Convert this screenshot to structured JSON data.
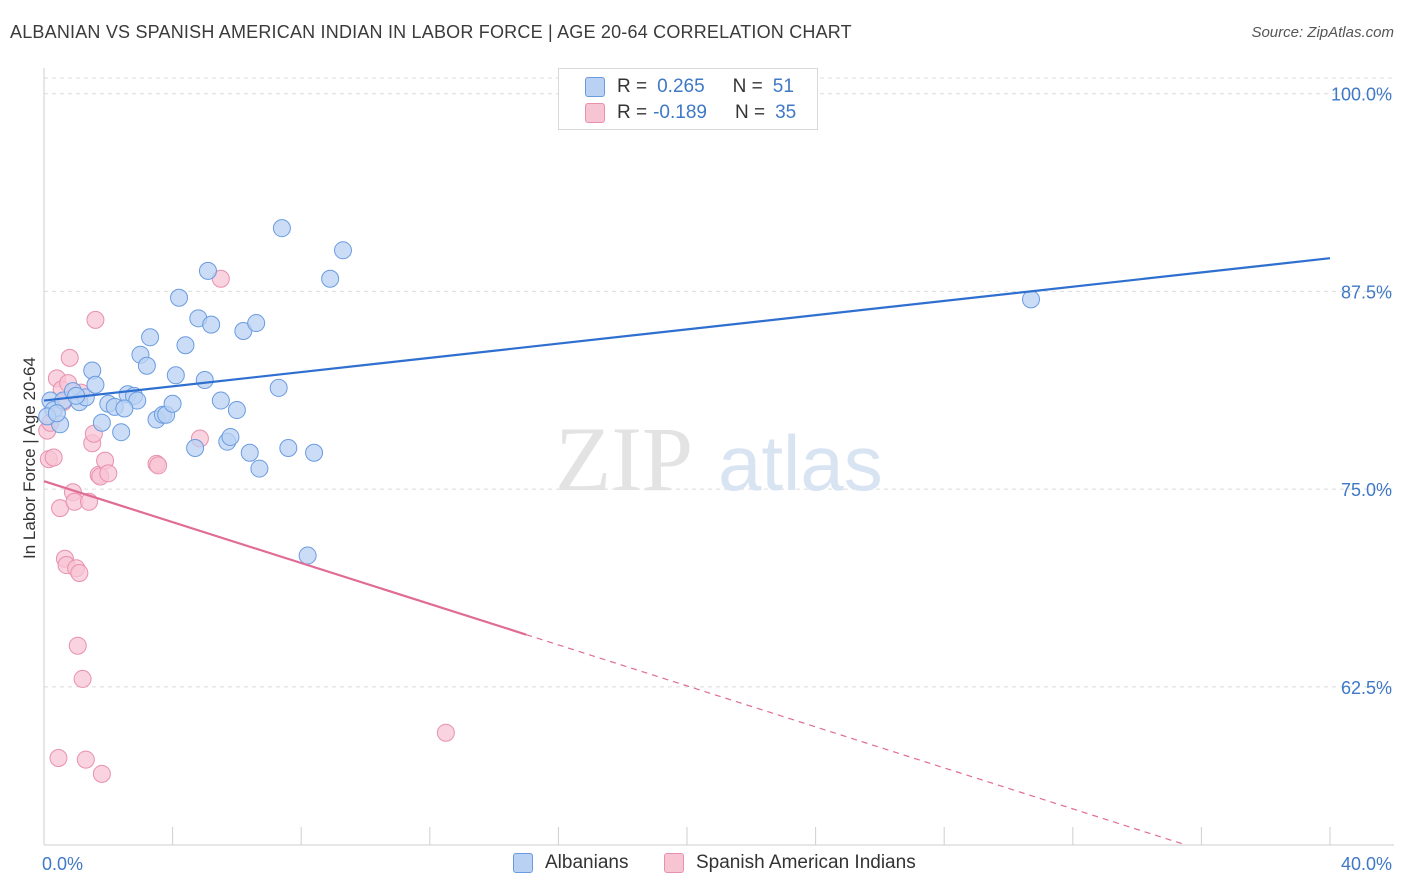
{
  "title": "ALBANIAN VS SPANISH AMERICAN INDIAN IN LABOR FORCE | AGE 20-64 CORRELATION CHART",
  "source": "Source: ZipAtlas.com",
  "watermark": {
    "zip": "ZIP",
    "atlas": "atlas"
  },
  "legend": {
    "rows": [
      {
        "r_label": "R =",
        "r_value": "0.265",
        "n_label": "N =",
        "n_value": "51"
      },
      {
        "r_label": "R =",
        "r_value": "-0.189",
        "n_label": "N =",
        "n_value": "35"
      }
    ]
  },
  "colors": {
    "albanian_fill": "#b9d1f3",
    "albanian_stroke": "#6a9be0",
    "albanian_line": "#2e6fd0",
    "spanish_fill": "#f7c4d4",
    "spanish_stroke": "#e990ae",
    "spanish_line": "#e06c95",
    "tick_text": "#3f78c6",
    "grid": "#dcdcdc"
  },
  "chart_data": {
    "type": "scatter",
    "title": "ALBANIAN VS SPANISH AMERICAN INDIAN IN LABOR FORCE | AGE 20-64 CORRELATION CHART",
    "xlabel": "",
    "ylabel": "In Labor Force | Age 20-64",
    "xlim": [
      0,
      40
    ],
    "ylim": [
      52.5,
      101.5
    ],
    "x_tick_labels": [
      {
        "value": 0,
        "label": "0.0%"
      },
      {
        "value": 40,
        "label": "40.0%"
      }
    ],
    "y_tick_labels": [
      {
        "value": 100,
        "label": "100.0%"
      },
      {
        "value": 87.5,
        "label": "87.5%"
      },
      {
        "value": 75,
        "label": "75.0%"
      },
      {
        "value": 62.5,
        "label": "62.5%"
      }
    ],
    "grid": "horizontal dashed",
    "legend_placement": "bottom",
    "series": [
      {
        "name": "Albanians",
        "points": [
          [
            0.2,
            80.6
          ],
          [
            0.3,
            80.0
          ],
          [
            0.5,
            79.1
          ],
          [
            0.6,
            80.6
          ],
          [
            0.9,
            81.2
          ],
          [
            1.1,
            80.5
          ],
          [
            1.3,
            80.8
          ],
          [
            1.5,
            82.5
          ],
          [
            1.6,
            81.6
          ],
          [
            1.8,
            79.2
          ],
          [
            2.0,
            80.4
          ],
          [
            2.2,
            80.2
          ],
          [
            2.4,
            78.6
          ],
          [
            2.6,
            81.0
          ],
          [
            2.8,
            80.9
          ],
          [
            2.9,
            80.6
          ],
          [
            3.0,
            83.5
          ],
          [
            3.2,
            82.8
          ],
          [
            3.3,
            84.6
          ],
          [
            3.5,
            79.4
          ],
          [
            3.7,
            79.7
          ],
          [
            3.8,
            79.7
          ],
          [
            4.0,
            80.4
          ],
          [
            4.1,
            82.2
          ],
          [
            4.2,
            87.1
          ],
          [
            4.4,
            84.1
          ],
          [
            4.7,
            77.6
          ],
          [
            4.8,
            85.8
          ],
          [
            5.0,
            81.9
          ],
          [
            5.1,
            88.8
          ],
          [
            5.2,
            85.4
          ],
          [
            5.5,
            80.6
          ],
          [
            5.7,
            78.0
          ],
          [
            5.8,
            78.3
          ],
          [
            6.0,
            80.0
          ],
          [
            6.2,
            85.0
          ],
          [
            6.4,
            77.3
          ],
          [
            6.6,
            85.5
          ],
          [
            6.7,
            76.3
          ],
          [
            7.3,
            81.4
          ],
          [
            7.4,
            91.5
          ],
          [
            7.6,
            77.6
          ],
          [
            8.2,
            70.8
          ],
          [
            8.4,
            77.3
          ],
          [
            8.9,
            88.3
          ],
          [
            9.3,
            90.1
          ],
          [
            30.7,
            87.0
          ],
          [
            0.1,
            79.6
          ],
          [
            0.4,
            79.8
          ],
          [
            1.0,
            80.9
          ],
          [
            2.5,
            80.1
          ]
        ]
      },
      {
        "name": "Spanish American Indians",
        "points": [
          [
            0.1,
            78.7
          ],
          [
            0.15,
            76.9
          ],
          [
            0.2,
            79.2
          ],
          [
            0.3,
            77.0
          ],
          [
            0.4,
            82.0
          ],
          [
            0.5,
            73.8
          ],
          [
            0.55,
            81.3
          ],
          [
            0.6,
            80.5
          ],
          [
            0.65,
            70.6
          ],
          [
            0.7,
            70.2
          ],
          [
            0.75,
            81.7
          ],
          [
            0.8,
            83.3
          ],
          [
            0.9,
            74.8
          ],
          [
            0.95,
            74.2
          ],
          [
            1.0,
            70.0
          ],
          [
            1.05,
            65.1
          ],
          [
            1.1,
            69.7
          ],
          [
            1.15,
            81.1
          ],
          [
            1.2,
            63.0
          ],
          [
            1.3,
            57.9
          ],
          [
            1.4,
            74.2
          ],
          [
            1.5,
            77.9
          ],
          [
            1.55,
            78.5
          ],
          [
            1.6,
            85.7
          ],
          [
            1.7,
            75.9
          ],
          [
            1.75,
            75.8
          ],
          [
            1.8,
            57.0
          ],
          [
            1.9,
            76.8
          ],
          [
            2.0,
            76.0
          ],
          [
            3.5,
            76.6
          ],
          [
            3.55,
            76.5
          ],
          [
            4.85,
            78.2
          ],
          [
            5.5,
            88.3
          ],
          [
            12.5,
            59.6
          ],
          [
            0.45,
            58.0
          ]
        ]
      }
    ],
    "trend_lines": [
      {
        "series": "Albanians",
        "x": [
          0,
          40
        ],
        "y": [
          80.6,
          89.6
        ],
        "style": "solid"
      },
      {
        "series": "Spanish American Indians",
        "x_solid": [
          0,
          15
        ],
        "y_solid": [
          75.5,
          65.8
        ],
        "x_dashed": [
          15,
          40
        ],
        "y_dashed": [
          65.8,
          49.6
        ]
      }
    ]
  },
  "bottom_legend": {
    "albanians": "Albanians",
    "spanish": "Spanish American Indians"
  }
}
